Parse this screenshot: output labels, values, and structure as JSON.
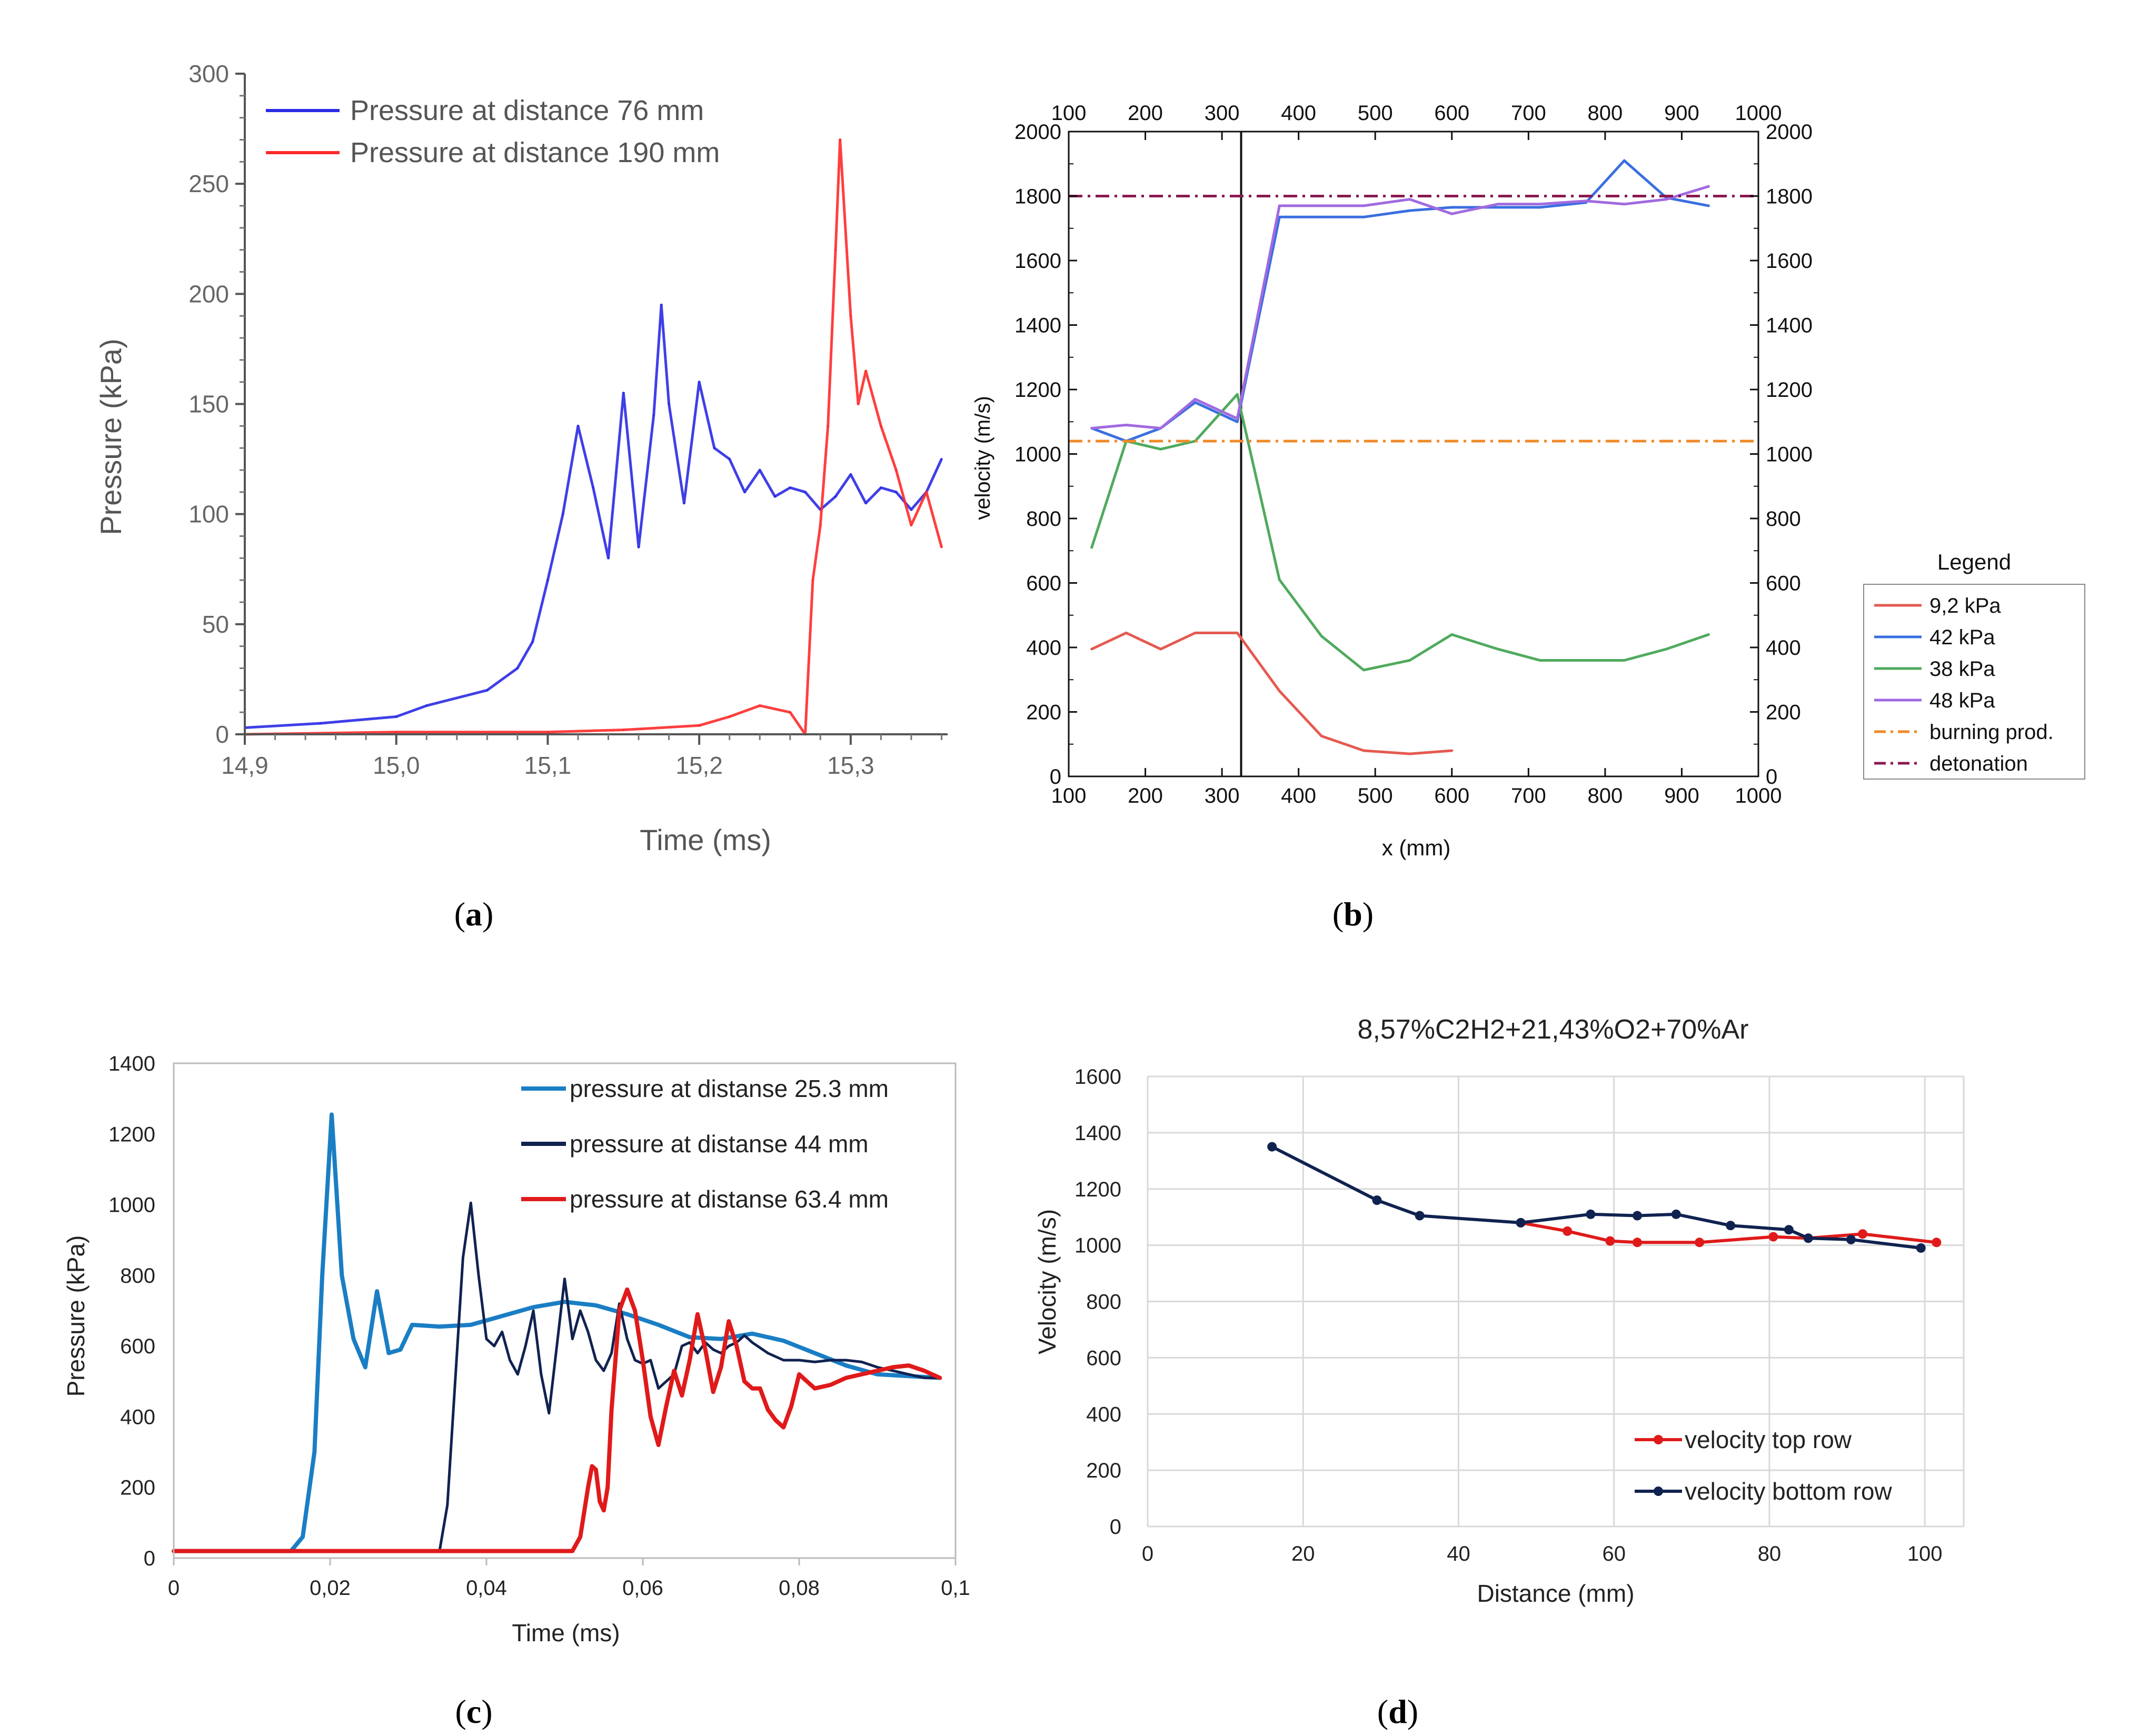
{
  "colors": {
    "blue_a": "#2a2ae6",
    "red_a": "#ff2a2a",
    "red_b": "#e45a50",
    "blue_b": "#3a6fe0",
    "green_b": "#50aa5e",
    "purple_b": "#a16ae0",
    "orange_b": "#f08a2a",
    "maroon_b": "#8a1a50",
    "blue_c": "#1a7ec4",
    "navy_c": "#102250",
    "red_c": "#e01a1a",
    "red_d": "#e01a1a",
    "navy_d": "#102250"
  },
  "chart_data": [
    {
      "id": "a",
      "caption": "a",
      "type": "line",
      "xlabel": "Time (ms)",
      "ylabel": "Pressure (kPa)",
      "xlim": [
        14.9,
        15.364
      ],
      "ylim": [
        0,
        300
      ],
      "xticks": [
        "14,9",
        "15,0",
        "15,1",
        "15,2",
        "15,3"
      ],
      "xtick_values": [
        14.9,
        15.0,
        15.1,
        15.2,
        15.3
      ],
      "yticks": [
        "0",
        "50",
        "100",
        "150",
        "200",
        "250",
        "300"
      ],
      "ytick_values": [
        0,
        50,
        100,
        150,
        200,
        250,
        300
      ],
      "series": [
        {
          "name": "Pressure at distance 76 mm",
          "color": "blue_a",
          "x": [
            14.9,
            14.95,
            15.0,
            15.02,
            15.06,
            15.08,
            15.09,
            15.1,
            15.11,
            15.12,
            15.13,
            15.14,
            15.15,
            15.16,
            15.17,
            15.175,
            15.18,
            15.19,
            15.2,
            15.21,
            15.22,
            15.23,
            15.24,
            15.25,
            15.26,
            15.27,
            15.28,
            15.29,
            15.3,
            15.31,
            15.32,
            15.33,
            15.34,
            15.35,
            15.36
          ],
          "y": [
            3,
            5,
            8,
            13,
            20,
            30,
            42,
            70,
            100,
            140,
            112,
            80,
            155,
            85,
            145,
            195,
            150,
            105,
            160,
            130,
            125,
            110,
            120,
            108,
            112,
            110,
            102,
            108,
            118,
            105,
            112,
            110,
            102,
            110,
            125
          ]
        },
        {
          "name": "Pressure at distance 190 mm",
          "color": "red_a",
          "x": [
            14.9,
            15.0,
            15.1,
            15.15,
            15.2,
            15.22,
            15.24,
            15.26,
            15.27,
            15.275,
            15.28,
            15.285,
            15.29,
            15.293,
            15.3,
            15.305,
            15.31,
            15.32,
            15.33,
            15.34,
            15.35,
            15.36
          ],
          "y": [
            0,
            1,
            1,
            2,
            4,
            8,
            13,
            10,
            0,
            70,
            95,
            140,
            220,
            270,
            190,
            150,
            165,
            140,
            120,
            95,
            110,
            85
          ]
        }
      ]
    },
    {
      "id": "b",
      "caption": "b",
      "type": "line",
      "xlabel": "x (mm)",
      "ylabel": "velocity (m/s)",
      "xlim": [
        100,
        1000
      ],
      "ylim": [
        0,
        2000
      ],
      "xticks": [
        "100",
        "200",
        "300",
        "400",
        "500",
        "600",
        "700",
        "800",
        "900",
        "1000"
      ],
      "xtick_values": [
        100,
        200,
        300,
        400,
        500,
        600,
        700,
        800,
        900,
        1000
      ],
      "yticks": [
        "0",
        "200",
        "400",
        "600",
        "800",
        "1000",
        "1200",
        "1400",
        "1600",
        "1800",
        "2000"
      ],
      "ytick_values": [
        0,
        200,
        400,
        600,
        800,
        1000,
        1200,
        1400,
        1600,
        1800,
        2000
      ],
      "vline_x": 325,
      "legend_title": "Legend",
      "series": [
        {
          "name": "9,2 kPa",
          "color": "red_b",
          "style": "solid",
          "x": [
            130,
            175,
            220,
            265,
            320,
            375,
            430,
            485,
            545,
            600
          ],
          "y": [
            395,
            445,
            395,
            445,
            445,
            265,
            125,
            80,
            70,
            80
          ]
        },
        {
          "name": "42 kPa",
          "color": "blue_b",
          "style": "solid",
          "x": [
            130,
            175,
            220,
            265,
            320,
            375,
            430,
            485,
            545,
            600,
            660,
            715,
            775,
            825,
            880,
            935
          ],
          "y": [
            1080,
            1040,
            1080,
            1160,
            1100,
            1735,
            1735,
            1735,
            1755,
            1765,
            1765,
            1765,
            1780,
            1910,
            1795,
            1770
          ]
        },
        {
          "name": "38 kPa",
          "color": "green_b",
          "style": "solid",
          "x": [
            130,
            175,
            220,
            265,
            320,
            375,
            430,
            485,
            545,
            600,
            660,
            715,
            775,
            825,
            880,
            935
          ],
          "y": [
            710,
            1040,
            1015,
            1040,
            1185,
            610,
            435,
            330,
            360,
            440,
            395,
            360,
            360,
            360,
            395,
            440
          ]
        },
        {
          "name": "48 kPa",
          "color": "purple_b",
          "style": "solid",
          "x": [
            130,
            175,
            220,
            265,
            320,
            375,
            430,
            485,
            545,
            600,
            660,
            715,
            775,
            825,
            880,
            935
          ],
          "y": [
            1080,
            1090,
            1080,
            1170,
            1110,
            1770,
            1770,
            1770,
            1790,
            1745,
            1775,
            1775,
            1785,
            1775,
            1790,
            1830
          ]
        },
        {
          "name": "burning prod.",
          "color": "orange_b",
          "style": "dashdot",
          "x": [
            100,
            1000
          ],
          "y": [
            1040,
            1040
          ]
        },
        {
          "name": "detonation",
          "color": "maroon_b",
          "style": "dashdot",
          "x": [
            100,
            1000
          ],
          "y": [
            1800,
            1800
          ]
        }
      ]
    },
    {
      "id": "c",
      "caption": "c",
      "type": "line",
      "xlabel": "Time (ms)",
      "ylabel": "Pressure (kPa)",
      "xlim": [
        0,
        0.1
      ],
      "ylim": [
        0,
        1400
      ],
      "xticks": [
        "0",
        "0,02",
        "0,04",
        "0,06",
        "0,08",
        "0,1"
      ],
      "xtick_values": [
        0,
        0.02,
        0.04,
        0.06,
        0.08,
        0.1
      ],
      "yticks": [
        "0",
        "200",
        "400",
        "600",
        "800",
        "1000",
        "1200",
        "1400"
      ],
      "ytick_values": [
        0,
        200,
        400,
        600,
        800,
        1000,
        1200,
        1400
      ],
      "series": [
        {
          "name": "pressure at distanse 25.3 mm",
          "color": "blue_c",
          "x": [
            0,
            0.015,
            0.0165,
            0.018,
            0.019,
            0.0202,
            0.0215,
            0.023,
            0.0245,
            0.026,
            0.0275,
            0.029,
            0.0305,
            0.034,
            0.038,
            0.042,
            0.046,
            0.05,
            0.054,
            0.058,
            0.062,
            0.066,
            0.07,
            0.074,
            0.078,
            0.082,
            0.086,
            0.09,
            0.094,
            0.098
          ],
          "y": [
            20,
            20,
            60,
            300,
            800,
            1255,
            800,
            620,
            540,
            755,
            580,
            590,
            660,
            655,
            660,
            685,
            710,
            725,
            715,
            690,
            660,
            625,
            620,
            635,
            615,
            580,
            545,
            520,
            515,
            510
          ]
        },
        {
          "name": "pressure at distanse 44 mm",
          "color": "navy_c",
          "x": [
            0,
            0.034,
            0.035,
            0.036,
            0.037,
            0.038,
            0.039,
            0.04,
            0.041,
            0.042,
            0.043,
            0.044,
            0.045,
            0.046,
            0.047,
            0.048,
            0.049,
            0.05,
            0.051,
            0.052,
            0.053,
            0.054,
            0.055,
            0.056,
            0.057,
            0.058,
            0.059,
            0.06,
            0.061,
            0.062,
            0.063,
            0.064,
            0.065,
            0.066,
            0.067,
            0.068,
            0.069,
            0.07,
            0.071,
            0.072,
            0.073,
            0.074,
            0.076,
            0.078,
            0.08,
            0.082,
            0.084,
            0.086,
            0.088,
            0.09,
            0.092,
            0.094,
            0.096,
            0.098
          ],
          "y": [
            20,
            20,
            150,
            500,
            850,
            1005,
            800,
            620,
            600,
            640,
            560,
            520,
            600,
            700,
            520,
            410,
            600,
            790,
            620,
            700,
            640,
            560,
            530,
            580,
            720,
            620,
            560,
            550,
            560,
            480,
            500,
            520,
            600,
            610,
            580,
            610,
            590,
            580,
            600,
            610,
            630,
            610,
            580,
            560,
            560,
            555,
            560,
            560,
            555,
            540,
            530,
            520,
            510,
            510
          ]
        },
        {
          "name": "pressure at distanse 63.4 mm",
          "color": "red_c",
          "x": [
            0,
            0.051,
            0.052,
            0.053,
            0.0535,
            0.054,
            0.0545,
            0.055,
            0.0555,
            0.056,
            0.057,
            0.058,
            0.059,
            0.06,
            0.061,
            0.062,
            0.063,
            0.064,
            0.065,
            0.066,
            0.067,
            0.068,
            0.069,
            0.07,
            0.071,
            0.072,
            0.073,
            0.074,
            0.075,
            0.076,
            0.077,
            0.078,
            0.079,
            0.08,
            0.081,
            0.082,
            0.084,
            0.086,
            0.088,
            0.09,
            0.092,
            0.094,
            0.096,
            0.098
          ],
          "y": [
            20,
            20,
            60,
            200,
            260,
            250,
            160,
            135,
            200,
            420,
            700,
            760,
            700,
            560,
            400,
            320,
            430,
            530,
            460,
            560,
            690,
            590,
            470,
            540,
            670,
            600,
            500,
            480,
            480,
            420,
            390,
            370,
            430,
            520,
            500,
            480,
            490,
            510,
            520,
            530,
            540,
            545,
            530,
            510
          ]
        }
      ]
    },
    {
      "id": "d",
      "caption": "d",
      "type": "line",
      "title": "8,57%C2H2+21,43%O2+70%Ar",
      "xlabel": "Distance (mm)",
      "ylabel": "Velocity (m/s)",
      "xlim": [
        0,
        105
      ],
      "ylim": [
        0,
        1600
      ],
      "xticks": [
        "0",
        "20",
        "40",
        "60",
        "80",
        "100"
      ],
      "xtick_values": [
        0,
        20,
        40,
        60,
        80,
        100
      ],
      "yticks": [
        "0",
        "200",
        "400",
        "600",
        "800",
        "1000",
        "1200",
        "1400",
        "1600"
      ],
      "ytick_values": [
        0,
        200,
        400,
        600,
        800,
        1000,
        1200,
        1400,
        1600
      ],
      "series": [
        {
          "name": "velocity top row",
          "color": "red_d",
          "x": [
            48,
            54,
            59.5,
            63,
            71,
            80.5,
            85,
            92,
            101.5
          ],
          "y": [
            1080,
            1050,
            1015,
            1010,
            1010,
            1030,
            1025,
            1040,
            1010
          ]
        },
        {
          "name": "velocity bottom row",
          "color": "navy_d",
          "x": [
            16,
            29.5,
            35,
            48,
            57,
            63,
            68,
            75,
            82.5,
            85,
            90.5,
            99.5
          ],
          "y": [
            1350,
            1160,
            1105,
            1080,
            1110,
            1105,
            1110,
            1070,
            1055,
            1025,
            1020,
            990
          ]
        }
      ]
    }
  ]
}
